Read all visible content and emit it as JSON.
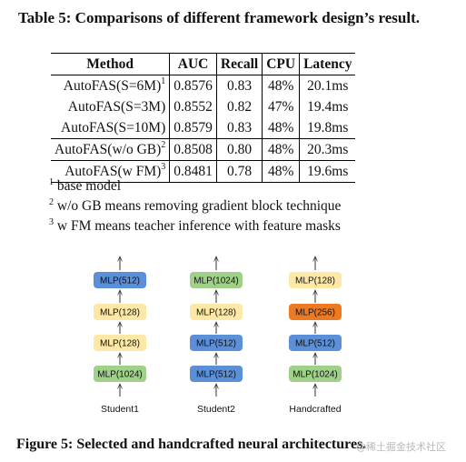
{
  "table_caption": "Table 5: Comparisons of different framework design’s result.",
  "table": {
    "headers": [
      "Method",
      "AUC",
      "Recall",
      "CPU",
      "Latency"
    ],
    "rows": [
      {
        "method": "AutoFAS(S=6M)",
        "sup": "1",
        "auc": "0.8576",
        "recall": "0.83",
        "cpu": "48%",
        "latency": "20.1ms"
      },
      {
        "method": "AutoFAS(S=3M)",
        "sup": "",
        "auc": "0.8552",
        "recall": "0.82",
        "cpu": "47%",
        "latency": "19.4ms"
      },
      {
        "method": "AutoFAS(S=10M)",
        "sup": "",
        "auc": "0.8579",
        "recall": "0.83",
        "cpu": "48%",
        "latency": "19.8ms"
      },
      {
        "method": "AutoFAS(w/o GB)",
        "sup": "2",
        "auc": "0.8508",
        "recall": "0.80",
        "cpu": "48%",
        "latency": "20.3ms"
      },
      {
        "method": "AutoFAS(w FM)",
        "sup": "3",
        "auc": "0.8481",
        "recall": "0.78",
        "cpu": "48%",
        "latency": "19.6ms"
      }
    ]
  },
  "footnotes": [
    {
      "mark": "1",
      "text": "base model"
    },
    {
      "mark": "2",
      "text": "w/o GB means removing gradient block technique"
    },
    {
      "mark": "3",
      "text": "w FM means teacher inference with feature masks"
    }
  ],
  "diagram": {
    "colors": {
      "blue": "#5b8fd8",
      "yellow": "#fde8a6",
      "green": "#9fd189",
      "orange": "#ec7a22"
    },
    "columns": [
      {
        "label": "Student1",
        "blocks_top_to_bottom": [
          {
            "text": "MLP(512)",
            "color": "blue"
          },
          {
            "text": "MLP(128)",
            "color": "yellow"
          },
          {
            "text": "MLP(128)",
            "color": "yellow"
          },
          {
            "text": "MLP(1024)",
            "color": "green"
          }
        ]
      },
      {
        "label": "Student2",
        "blocks_top_to_bottom": [
          {
            "text": "MLP(1024)",
            "color": "green"
          },
          {
            "text": "MLP(128)",
            "color": "yellow"
          },
          {
            "text": "MLP(512)",
            "color": "blue"
          },
          {
            "text": "MLP(512)",
            "color": "blue"
          }
        ]
      },
      {
        "label": "Handcrafted",
        "blocks_top_to_bottom": [
          {
            "text": "MLP(128)",
            "color": "yellow"
          },
          {
            "text": "MLP(256)",
            "color": "orange"
          },
          {
            "text": "MLP(512)",
            "color": "blue"
          },
          {
            "text": "MLP(1024)",
            "color": "green"
          }
        ]
      }
    ]
  },
  "figure_caption": "Figure 5: Selected and handcrafted neural architectures.",
  "watermark": "@稀土掘金技术社区"
}
